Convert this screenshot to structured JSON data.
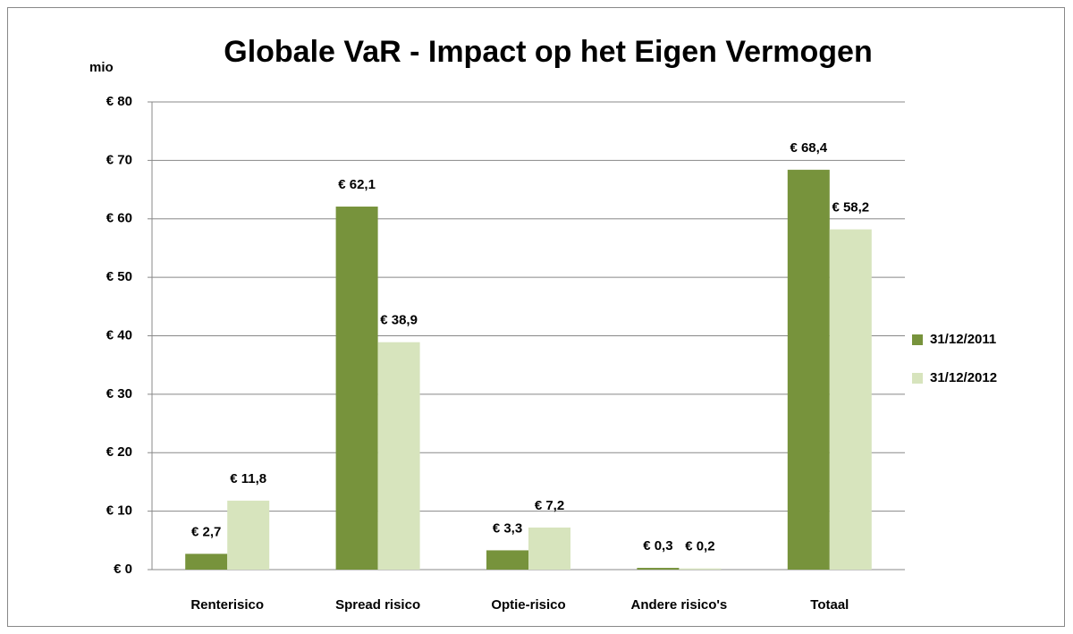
{
  "chart_data": {
    "type": "bar",
    "title": "Globale VaR - Impact op het Eigen Vermogen",
    "y_label": "mio",
    "categories": [
      "Renterisico",
      "Spread risico",
      "Optie-risico",
      "Andere risico's",
      "Totaal"
    ],
    "series": [
      {
        "name": "31/12/2011",
        "color": "#77933c",
        "values": [
          2.7,
          62.1,
          3.3,
          0.3,
          68.4
        ],
        "value_labels": [
          "€ 2,7",
          "€ 62,1",
          "€ 3,3",
          "€ 0,3",
          "€ 68,4"
        ]
      },
      {
        "name": "31/12/2012",
        "color": "#d7e4bd",
        "values": [
          11.8,
          38.9,
          7.2,
          0.2,
          58.2
        ],
        "value_labels": [
          "€ 11,8",
          "€ 38,9",
          "€ 7,2",
          "€ 0,2",
          "€ 58,2"
        ]
      }
    ],
    "ylim": [
      0,
      80
    ],
    "yticks": [
      {
        "value": 0,
        "label": "€ 0"
      },
      {
        "value": 10,
        "label": "€ 10"
      },
      {
        "value": 20,
        "label": "€ 20"
      },
      {
        "value": 30,
        "label": "€ 30"
      },
      {
        "value": 40,
        "label": "€ 40"
      },
      {
        "value": 50,
        "label": "€ 50"
      },
      {
        "value": 60,
        "label": "€ 60"
      },
      {
        "value": 70,
        "label": "€ 70"
      },
      {
        "value": 80,
        "label": "€ 80"
      }
    ],
    "grid": true,
    "legend": "right"
  }
}
